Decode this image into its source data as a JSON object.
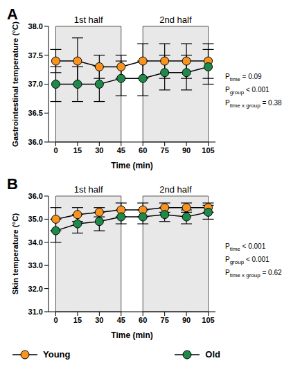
{
  "chart_data": [
    {
      "type": "line",
      "panel": "A",
      "x_label": "Time (min)",
      "y_label": "Gastrointestinal temperature (°C)",
      "x": [
        0,
        15,
        30,
        45,
        60,
        75,
        90,
        105
      ],
      "xlim": [
        -5,
        110
      ],
      "xticks": [
        0,
        15,
        30,
        45,
        60,
        75,
        90,
        105
      ],
      "ylim": [
        36,
        38
      ],
      "yticks": [
        {
          "value": 36,
          "label": "36.0"
        },
        {
          "value": 36.5,
          "label": "36.5"
        },
        {
          "value": 37,
          "label": "37.0"
        },
        {
          "value": 37.5,
          "label": "37.5"
        },
        {
          "value": 38,
          "label": "38.0"
        }
      ],
      "grid": false,
      "shaded": [
        {
          "label": "1st half",
          "x": [
            0,
            45
          ]
        },
        {
          "label": "2nd half",
          "x": [
            60,
            105
          ]
        }
      ],
      "annotations": [
        {
          "symbol": "P",
          "sub": "time",
          "text": " = 0.09"
        },
        {
          "symbol": "P",
          "sub": "group",
          "text": " < 0.001"
        },
        {
          "symbol": "P",
          "sub": "time x group",
          "text": " = 0.38"
        }
      ],
      "series": [
        {
          "name": "Young",
          "color": "#f7931e",
          "marker": "circle",
          "values": [
            37.4,
            37.4,
            37.3,
            37.3,
            37.4,
            37.4,
            37.4,
            37.4
          ],
          "errors": [
            0.2,
            0.4,
            0.2,
            0.2,
            0.3,
            0.3,
            0.3,
            0.3
          ]
        },
        {
          "name": "Old",
          "color": "#1e8a4a",
          "marker": "circle",
          "values": [
            37.0,
            37.0,
            37.0,
            37.1,
            37.1,
            37.2,
            37.2,
            37.3
          ],
          "errors": [
            0.3,
            0.3,
            0.3,
            0.3,
            0.3,
            0.3,
            0.3,
            0.3
          ]
        }
      ]
    },
    {
      "type": "line",
      "panel": "B",
      "x_label": "Time (min)",
      "y_label": "Skin temperature (°C)",
      "x": [
        0,
        15,
        30,
        45,
        60,
        75,
        90,
        105
      ],
      "xlim": [
        -5,
        110
      ],
      "xticks": [
        0,
        15,
        30,
        45,
        60,
        75,
        90,
        105
      ],
      "ylim": [
        31,
        36
      ],
      "yticks": [
        {
          "value": 31,
          "label": "31.0"
        },
        {
          "value": 32,
          "label": "32.0"
        },
        {
          "value": 33,
          "label": "33.0"
        },
        {
          "value": 34,
          "label": "34.0"
        },
        {
          "value": 35,
          "label": "35.0"
        },
        {
          "value": 36,
          "label": "36.0"
        }
      ],
      "grid": false,
      "legend": "bottom",
      "shaded": [
        {
          "label": "1st half",
          "x": [
            0,
            45
          ]
        },
        {
          "label": "2nd half",
          "x": [
            60,
            105
          ]
        }
      ],
      "annotations": [
        {
          "symbol": "P",
          "sub": "time",
          "text": " < 0.001"
        },
        {
          "symbol": "P",
          "sub": "group",
          "text": " < 0.001"
        },
        {
          "symbol": "P",
          "sub": "time x group",
          "text": " = 0.62"
        }
      ],
      "series": [
        {
          "name": "Young",
          "color": "#f7931e",
          "marker": "circle",
          "values": [
            35.0,
            35.2,
            35.3,
            35.4,
            35.4,
            35.5,
            35.5,
            35.5
          ],
          "errors": [
            0.5,
            0.3,
            0.2,
            0.3,
            0.3,
            0.2,
            0.2,
            0.2
          ]
        },
        {
          "name": "Old",
          "color": "#1e8a4a",
          "marker": "circle",
          "values": [
            34.5,
            34.8,
            34.9,
            35.1,
            35.1,
            35.2,
            35.1,
            35.3
          ],
          "errors": [
            0.5,
            0.4,
            0.4,
            0.3,
            0.3,
            0.3,
            0.3,
            0.3
          ]
        }
      ]
    }
  ]
}
